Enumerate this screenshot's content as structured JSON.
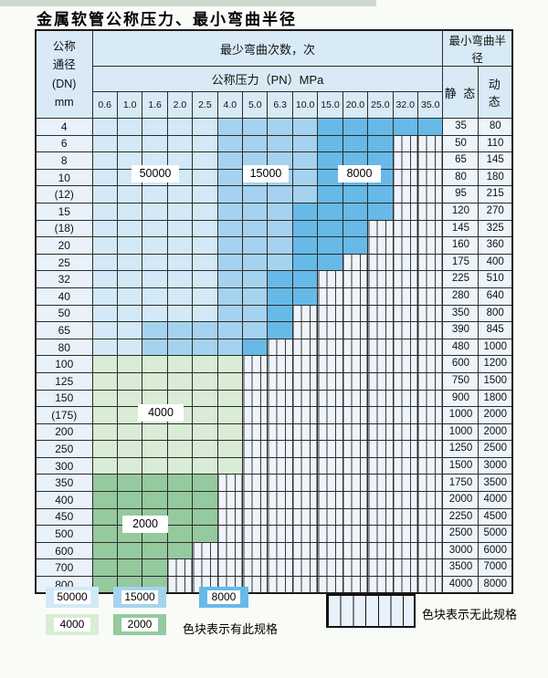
{
  "title": "金属软管公称压力、最小弯曲半径",
  "colors": {
    "50000": "#d3e9f7",
    "15000": "#a5d3ef",
    "8000": "#67b9e7",
    "4000": "#d9ecd5",
    "2000": "#95c99e",
    "hatch_bg": "#eef4fb",
    "header_bg": "#d7eaf6"
  },
  "table": {
    "corner_lines": [
      "公称",
      "通径",
      "(DN)",
      "mm"
    ],
    "cycles_header": "最少弯曲次数，次",
    "pressure_header": "公称压力（PN）MPa",
    "radius_header": "最小弯曲半径",
    "static_header": "静 态",
    "dynamic_header": "动 态",
    "pressure_columns": [
      "0.6",
      "1.0",
      "1.6",
      "2.0",
      "2.5",
      "4.0",
      "5.0",
      "6.3",
      "10.0",
      "15.0",
      "20.0",
      "25.0",
      "32.0",
      "35.0"
    ],
    "rows": [
      {
        "dn": "4",
        "zones": [
          "50000",
          "50000",
          "50000",
          "50000",
          "50000",
          "15000",
          "15000",
          "15000",
          "15000",
          "8000",
          "8000",
          "8000",
          "8000",
          "8000"
        ],
        "static": "35",
        "dynamic": "80"
      },
      {
        "dn": "6",
        "zones": [
          "50000",
          "50000",
          "50000",
          "50000",
          "50000",
          "15000",
          "15000",
          "15000",
          "15000",
          "8000",
          "8000",
          "8000",
          "none",
          "none"
        ],
        "static": "50",
        "dynamic": "110"
      },
      {
        "dn": "8",
        "zones": [
          "50000",
          "50000",
          "50000",
          "50000",
          "50000",
          "15000",
          "15000",
          "15000",
          "15000",
          "8000",
          "8000",
          "8000",
          "none",
          "none"
        ],
        "static": "65",
        "dynamic": "145"
      },
      {
        "dn": "10",
        "zones": [
          "50000",
          "50000",
          "50000",
          "50000",
          "50000",
          "15000",
          "15000",
          "15000",
          "15000",
          "8000",
          "8000",
          "8000",
          "none",
          "none"
        ],
        "static": "80",
        "dynamic": "180"
      },
      {
        "dn": "(12)",
        "zones": [
          "50000",
          "50000",
          "50000",
          "50000",
          "50000",
          "15000",
          "15000",
          "15000",
          "15000",
          "8000",
          "8000",
          "8000",
          "none",
          "none"
        ],
        "static": "95",
        "dynamic": "215"
      },
      {
        "dn": "15",
        "zones": [
          "50000",
          "50000",
          "50000",
          "50000",
          "50000",
          "15000",
          "15000",
          "15000",
          "8000",
          "8000",
          "8000",
          "8000",
          "none",
          "none"
        ],
        "static": "120",
        "dynamic": "270"
      },
      {
        "dn": "(18)",
        "zones": [
          "50000",
          "50000",
          "50000",
          "50000",
          "50000",
          "15000",
          "15000",
          "15000",
          "8000",
          "8000",
          "8000",
          "none",
          "none",
          "none"
        ],
        "static": "145",
        "dynamic": "325"
      },
      {
        "dn": "20",
        "zones": [
          "50000",
          "50000",
          "50000",
          "50000",
          "50000",
          "15000",
          "15000",
          "15000",
          "8000",
          "8000",
          "8000",
          "none",
          "none",
          "none"
        ],
        "static": "160",
        "dynamic": "360"
      },
      {
        "dn": "25",
        "zones": [
          "50000",
          "50000",
          "50000",
          "50000",
          "50000",
          "15000",
          "15000",
          "15000",
          "8000",
          "8000",
          "none",
          "none",
          "none",
          "none"
        ],
        "static": "175",
        "dynamic": "400"
      },
      {
        "dn": "32",
        "zones": [
          "50000",
          "50000",
          "50000",
          "50000",
          "50000",
          "15000",
          "15000",
          "8000",
          "8000",
          "none",
          "none",
          "none",
          "none",
          "none"
        ],
        "static": "225",
        "dynamic": "510"
      },
      {
        "dn": "40",
        "zones": [
          "50000",
          "50000",
          "50000",
          "50000",
          "50000",
          "15000",
          "15000",
          "8000",
          "8000",
          "none",
          "none",
          "none",
          "none",
          "none"
        ],
        "static": "280",
        "dynamic": "640"
      },
      {
        "dn": "50",
        "zones": [
          "50000",
          "50000",
          "50000",
          "50000",
          "50000",
          "15000",
          "15000",
          "8000",
          "none",
          "none",
          "none",
          "none",
          "none",
          "none"
        ],
        "static": "350",
        "dynamic": "800"
      },
      {
        "dn": "65",
        "zones": [
          "50000",
          "50000",
          "15000",
          "15000",
          "15000",
          "15000",
          "15000",
          "8000",
          "none",
          "none",
          "none",
          "none",
          "none",
          "none"
        ],
        "static": "390",
        "dynamic": "845"
      },
      {
        "dn": "80",
        "zones": [
          "50000",
          "50000",
          "15000",
          "15000",
          "15000",
          "15000",
          "8000",
          "none",
          "none",
          "none",
          "none",
          "none",
          "none",
          "none"
        ],
        "static": "480",
        "dynamic": "1000"
      },
      {
        "dn": "100",
        "zones": [
          "4000",
          "4000",
          "4000",
          "4000",
          "4000",
          "4000",
          "none",
          "none",
          "none",
          "none",
          "none",
          "none",
          "none",
          "none"
        ],
        "static": "600",
        "dynamic": "1200"
      },
      {
        "dn": "125",
        "zones": [
          "4000",
          "4000",
          "4000",
          "4000",
          "4000",
          "4000",
          "none",
          "none",
          "none",
          "none",
          "none",
          "none",
          "none",
          "none"
        ],
        "static": "750",
        "dynamic": "1500"
      },
      {
        "dn": "150",
        "zones": [
          "4000",
          "4000",
          "4000",
          "4000",
          "4000",
          "4000",
          "none",
          "none",
          "none",
          "none",
          "none",
          "none",
          "none",
          "none"
        ],
        "static": "900",
        "dynamic": "1800"
      },
      {
        "dn": "(175)",
        "zones": [
          "4000",
          "4000",
          "4000",
          "4000",
          "4000",
          "4000",
          "none",
          "none",
          "none",
          "none",
          "none",
          "none",
          "none",
          "none"
        ],
        "static": "1000",
        "dynamic": "2000"
      },
      {
        "dn": "200",
        "zones": [
          "4000",
          "4000",
          "4000",
          "4000",
          "4000",
          "4000",
          "none",
          "none",
          "none",
          "none",
          "none",
          "none",
          "none",
          "none"
        ],
        "static": "1000",
        "dynamic": "2000"
      },
      {
        "dn": "250",
        "zones": [
          "4000",
          "4000",
          "4000",
          "4000",
          "4000",
          "4000",
          "none",
          "none",
          "none",
          "none",
          "none",
          "none",
          "none",
          "none"
        ],
        "static": "1250",
        "dynamic": "2500"
      },
      {
        "dn": "300",
        "zones": [
          "4000",
          "4000",
          "4000",
          "4000",
          "4000",
          "4000",
          "none",
          "none",
          "none",
          "none",
          "none",
          "none",
          "none",
          "none"
        ],
        "static": "1500",
        "dynamic": "3000"
      },
      {
        "dn": "350",
        "zones": [
          "2000",
          "2000",
          "2000",
          "2000",
          "2000",
          "none",
          "none",
          "none",
          "none",
          "none",
          "none",
          "none",
          "none",
          "none"
        ],
        "static": "1750",
        "dynamic": "3500"
      },
      {
        "dn": "400",
        "zones": [
          "2000",
          "2000",
          "2000",
          "2000",
          "2000",
          "none",
          "none",
          "none",
          "none",
          "none",
          "none",
          "none",
          "none",
          "none"
        ],
        "static": "2000",
        "dynamic": "4000"
      },
      {
        "dn": "450",
        "zones": [
          "2000",
          "2000",
          "2000",
          "2000",
          "2000",
          "none",
          "none",
          "none",
          "none",
          "none",
          "none",
          "none",
          "none",
          "none"
        ],
        "static": "2250",
        "dynamic": "4500"
      },
      {
        "dn": "500",
        "zones": [
          "2000",
          "2000",
          "2000",
          "2000",
          "2000",
          "none",
          "none",
          "none",
          "none",
          "none",
          "none",
          "none",
          "none",
          "none"
        ],
        "static": "2500",
        "dynamic": "5000"
      },
      {
        "dn": "600",
        "zones": [
          "2000",
          "2000",
          "2000",
          "2000",
          "none",
          "none",
          "none",
          "none",
          "none",
          "none",
          "none",
          "none",
          "none",
          "none"
        ],
        "static": "3000",
        "dynamic": "6000"
      },
      {
        "dn": "700",
        "zones": [
          "2000",
          "2000",
          "2000",
          "none",
          "none",
          "none",
          "none",
          "none",
          "none",
          "none",
          "none",
          "none",
          "none",
          "none"
        ],
        "static": "3500",
        "dynamic": "7000"
      },
      {
        "dn": "800",
        "zones": [
          "2000",
          "2000",
          "2000",
          "none",
          "none",
          "none",
          "none",
          "none",
          "none",
          "none",
          "none",
          "none",
          "none",
          "none"
        ],
        "static": "4000",
        "dynamic": "8000"
      }
    ]
  },
  "zone_labels": [
    {
      "text": "50000"
    },
    {
      "text": "15000"
    },
    {
      "text": "8000"
    },
    {
      "text": "4000"
    },
    {
      "text": "2000"
    }
  ],
  "legend": {
    "swatches": [
      {
        "value": "50000"
      },
      {
        "value": "15000"
      },
      {
        "value": "8000"
      },
      {
        "value": "4000"
      },
      {
        "value": "2000"
      }
    ],
    "available_note": "色块表示有此规格",
    "unavailable_note": "色块表示无此规格"
  }
}
